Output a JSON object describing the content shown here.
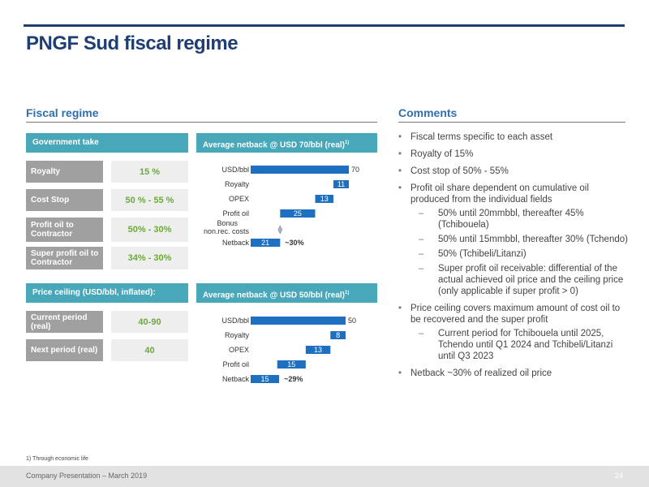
{
  "title": "PNGF Sud fiscal regime",
  "fiscal": {
    "heading": "Fiscal regime",
    "gov_take_header": "Government take",
    "rows": [
      {
        "label": "Royalty",
        "value": "15 %"
      },
      {
        "label": "Cost Stop",
        "value": "50 % - 55 %"
      },
      {
        "label": "Profit oil to Contractor",
        "value": "50% - 30%"
      },
      {
        "label": "Super profit oil to Contractor",
        "value": "34% - 30%"
      }
    ],
    "price_ceiling_header": "Price ceiling (USD/bbl, inflated):",
    "price_rows": [
      {
        "label": "Current period (real)",
        "value": "40-90"
      },
      {
        "label": "Next period (real)",
        "value": "40"
      }
    ]
  },
  "chart_data": [
    {
      "type": "bar",
      "title": "Average netback @ USD 70/bbl (real)",
      "title_sup": "1)",
      "categories": [
        "USD/bbl",
        "Royalty",
        "OPEX",
        "Profit oil",
        "Bonus non.rec. costs",
        "Netback"
      ],
      "values": [
        70,
        11,
        13,
        25,
        0,
        21
      ],
      "value_labels": [
        "70",
        "11",
        "13",
        "25",
        "",
        "21"
      ],
      "annotation": "~30%",
      "xlim": [
        0,
        70
      ]
    },
    {
      "type": "bar",
      "title": "Average netback @ USD 50/bbl (real)",
      "title_sup": "1)",
      "categories": [
        "USD/bbl",
        "Royalty",
        "OPEX",
        "Profit oil",
        "Netback"
      ],
      "values": [
        50,
        8,
        13,
        15,
        15
      ],
      "value_labels": [
        "50",
        "8",
        "13",
        "15",
        "15"
      ],
      "annotation": "~29%",
      "xlim": [
        0,
        50
      ]
    }
  ],
  "comments": {
    "heading": "Comments",
    "bullets": [
      {
        "text": "Fiscal terms specific to each asset"
      },
      {
        "text": "Royalty of 15%"
      },
      {
        "text": "Cost stop of 50% - 55%"
      },
      {
        "text": "Profit oil share dependent on cumulative oil produced from the individual fields",
        "sub": [
          "50% until 20mmbbl, thereafter 45% (Tchibouela)",
          "50% until 15mmbbl, thereafter 30% (Tchendo)",
          "50% (Tchibeli/Litanzi)",
          "Super profit oil receivable: differential of the actual achieved oil price and the ceiling price (only applicable if super profit > 0)"
        ]
      },
      {
        "text": "Price ceiling covers maximum amount of cost oil to be recovered and the super profit",
        "sub": [
          "Current period for Tchibouela until 2025, Tchendo until Q1 2024 and Tchibeli/Litanzi until Q3 2023"
        ]
      },
      {
        "text": "Netback ~30% of realized oil price"
      }
    ]
  },
  "footnote": "1) Through economic life",
  "footer": {
    "left": "Company Presentation – March 2019",
    "right": "24"
  },
  "colors": {
    "bar": "#1e6fc0",
    "teal": "#48a7b8",
    "navy": "#1f3f74",
    "value_green": "#6aaa3a"
  }
}
